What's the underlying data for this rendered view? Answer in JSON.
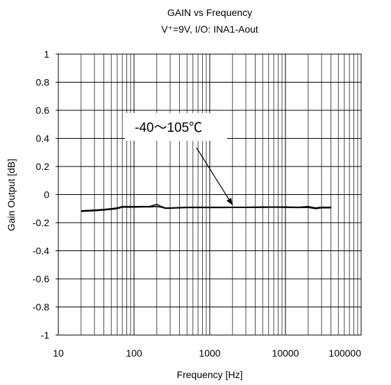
{
  "chart_data": {
    "type": "line",
    "title": "GAIN vs Frequency",
    "subtitle": "V⁺=9V, I/O: INA1-Aout",
    "xlabel": "Frequency [Hz]",
    "ylabel": "Gain Output [dB]",
    "xscale": "log",
    "xlim": [
      10,
      100000
    ],
    "ylim": [
      -1,
      1
    ],
    "x_ticks": [
      10,
      100,
      1000,
      10000,
      100000
    ],
    "x_tick_labels": [
      "10",
      "100",
      "1000",
      "10000",
      "100000"
    ],
    "y_ticks": [
      1,
      0.8,
      0.6,
      0.4,
      0.2,
      0,
      -0.2,
      -0.4,
      -0.6,
      -0.8,
      -1
    ],
    "y_tick_labels": [
      "1",
      "0.8",
      "0.6",
      "0.4",
      "0.2",
      "0",
      "-0.2",
      "-0.4",
      "-0.6",
      "-0.8",
      "-1"
    ],
    "grid": true,
    "annotation": {
      "text": "-40～105℃",
      "arrow_target": {
        "x": 2000,
        "y": -0.09
      }
    },
    "series": [
      {
        "color": "#000000",
        "points": [
          [
            20,
            -0.115
          ],
          [
            30,
            -0.11
          ],
          [
            40,
            -0.105
          ],
          [
            50,
            -0.1
          ],
          [
            60,
            -0.095
          ],
          [
            70,
            -0.085
          ],
          [
            80,
            -0.085
          ],
          [
            100,
            -0.085
          ],
          [
            130,
            -0.085
          ],
          [
            160,
            -0.085
          ],
          [
            200,
            -0.07
          ],
          [
            230,
            -0.085
          ],
          [
            260,
            -0.095
          ],
          [
            300,
            -0.095
          ],
          [
            400,
            -0.092
          ],
          [
            500,
            -0.09
          ],
          [
            700,
            -0.09
          ],
          [
            1000,
            -0.09
          ],
          [
            1500,
            -0.09
          ],
          [
            2000,
            -0.09
          ],
          [
            3000,
            -0.09
          ],
          [
            5000,
            -0.088
          ],
          [
            7000,
            -0.088
          ],
          [
            10000,
            -0.088
          ],
          [
            15000,
            -0.09
          ],
          [
            20000,
            -0.085
          ],
          [
            25000,
            -0.095
          ],
          [
            30000,
            -0.09
          ],
          [
            40000,
            -0.09
          ]
        ]
      },
      {
        "color": "#000000",
        "points": [
          [
            20,
            -0.12
          ],
          [
            30,
            -0.115
          ],
          [
            40,
            -0.11
          ],
          [
            50,
            -0.105
          ],
          [
            60,
            -0.1
          ],
          [
            70,
            -0.09
          ],
          [
            80,
            -0.09
          ],
          [
            100,
            -0.09
          ],
          [
            130,
            -0.088
          ],
          [
            160,
            -0.088
          ],
          [
            200,
            -0.085
          ],
          [
            230,
            -0.09
          ],
          [
            260,
            -0.098
          ],
          [
            300,
            -0.098
          ],
          [
            400,
            -0.095
          ],
          [
            500,
            -0.093
          ],
          [
            700,
            -0.093
          ],
          [
            1000,
            -0.093
          ],
          [
            1500,
            -0.093
          ],
          [
            2000,
            -0.092
          ],
          [
            3000,
            -0.092
          ],
          [
            5000,
            -0.092
          ],
          [
            7000,
            -0.09
          ],
          [
            10000,
            -0.092
          ],
          [
            15000,
            -0.093
          ],
          [
            20000,
            -0.092
          ],
          [
            25000,
            -0.1
          ],
          [
            30000,
            -0.095
          ],
          [
            40000,
            -0.095
          ]
        ]
      }
    ]
  }
}
